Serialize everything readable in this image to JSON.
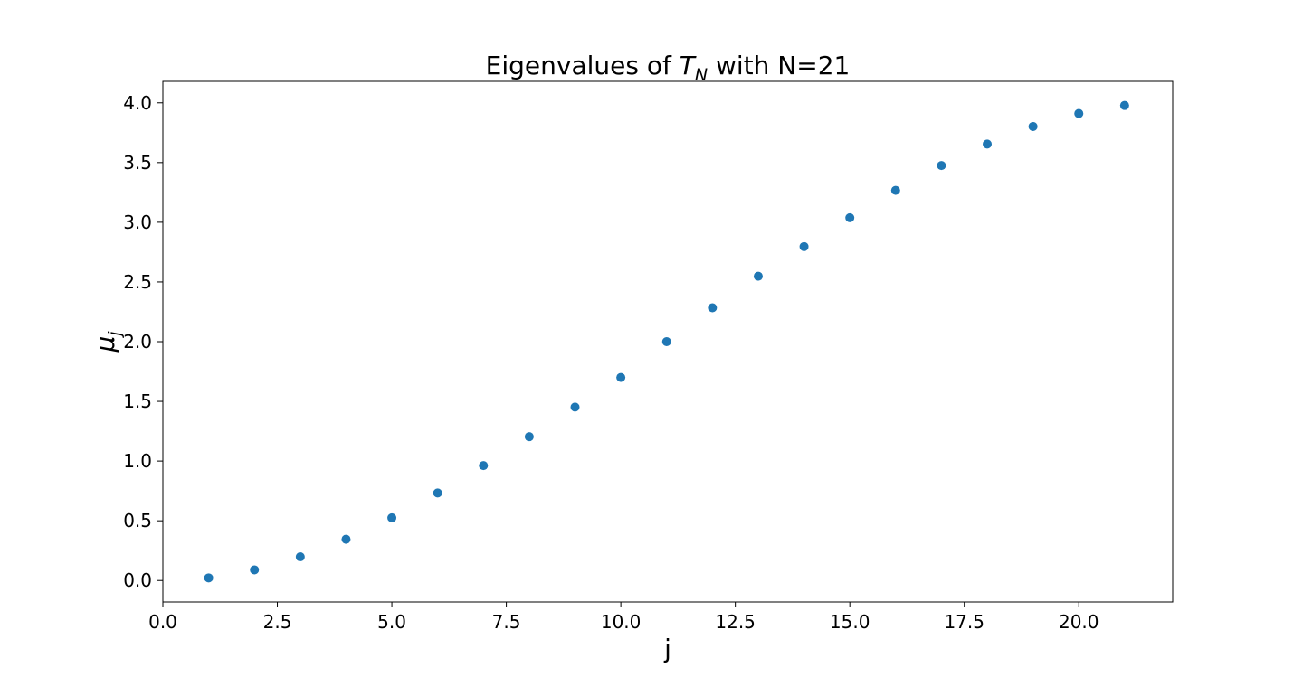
{
  "chart_data": {
    "type": "scatter",
    "title": {
      "prefix": "Eigenvalues of ",
      "symbol": "T",
      "subscript": "N",
      "suffix": " with N=21"
    },
    "xlabel": "j",
    "ylabel": {
      "symbol": "μ",
      "subscript": "j"
    },
    "xlim": [
      0,
      22.05
    ],
    "ylim": [
      -0.18,
      4.18
    ],
    "xticks": [
      0.0,
      2.5,
      5.0,
      7.5,
      10.0,
      12.5,
      15.0,
      17.5,
      20.0
    ],
    "xtick_labels": [
      "0.0",
      "2.5",
      "5.0",
      "7.5",
      "10.0",
      "12.5",
      "15.0",
      "17.5",
      "20.0"
    ],
    "yticks": [
      0.0,
      0.5,
      1.0,
      1.5,
      2.0,
      2.5,
      3.0,
      3.5,
      4.0
    ],
    "ytick_labels": [
      "0.0",
      "0.5",
      "1.0",
      "1.5",
      "2.0",
      "2.5",
      "3.0",
      "3.5",
      "4.0"
    ],
    "grid": false,
    "marker_color": "#1f77b4",
    "x": [
      1,
      2,
      3,
      4,
      5,
      6,
      7,
      8,
      9,
      10,
      11,
      12,
      13,
      14,
      15,
      16,
      17,
      18,
      19,
      20,
      21
    ],
    "y": [
      0.022,
      0.089,
      0.198,
      0.345,
      0.525,
      0.733,
      0.962,
      1.204,
      1.452,
      1.7,
      2.0,
      2.284,
      2.548,
      2.796,
      3.038,
      3.267,
      3.475,
      3.655,
      3.802,
      3.911,
      3.978
    ]
  }
}
